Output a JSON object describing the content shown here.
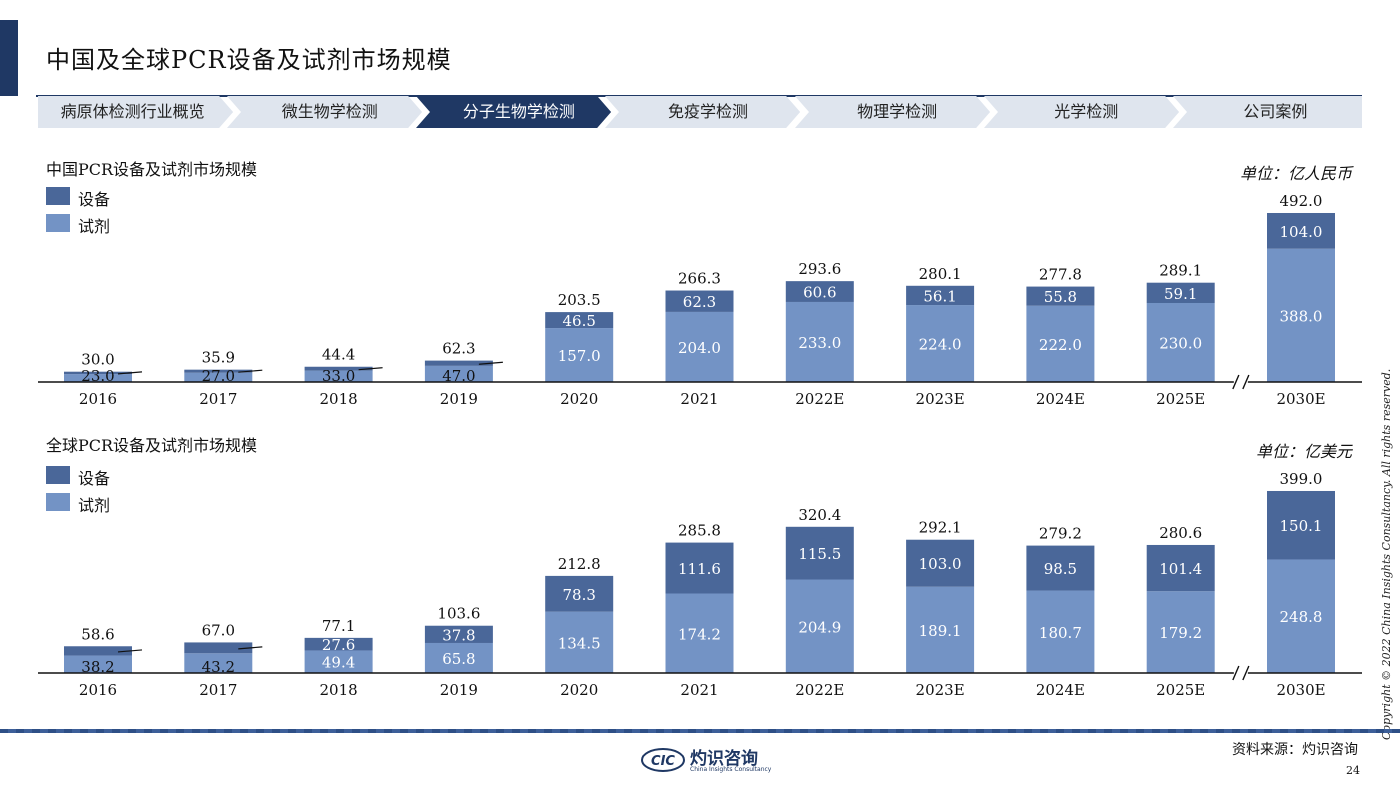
{
  "page": {
    "title": "中国及全球PCR设备及试剂市场规模",
    "copyright": "Copyright © 2022 China Insights Consultancy. All rights reserved.",
    "source": "资料来源：灼识咨询",
    "page_number": "24",
    "logo": {
      "mark": "CIC",
      "name": "灼识咨询",
      "sub": "China Insights Consultancy"
    }
  },
  "nav": {
    "items": [
      {
        "label": "病原体检测行业概览",
        "active": false
      },
      {
        "label": "微生物学检测",
        "active": false
      },
      {
        "label": "分子生物学检测",
        "active": true
      },
      {
        "label": "免疫学检测",
        "active": false
      },
      {
        "label": "物理学检测",
        "active": false
      },
      {
        "label": "光学检测",
        "active": false
      },
      {
        "label": "公司案例",
        "active": false
      }
    ]
  },
  "colors": {
    "equipment": "#4a6799",
    "reagent": "#7393c5",
    "nav_active": "#1f3864",
    "nav_inactive": "#dfe5ee",
    "axis": "#111111"
  },
  "chart_data": [
    {
      "type": "bar",
      "stacked": true,
      "title": "中国PCR设备及试剂市场规模",
      "unit": "单位：亿人民币",
      "axis_break_before": "2030E",
      "legend": [
        "设备",
        "试剂"
      ],
      "categories": [
        "2016",
        "2017",
        "2018",
        "2019",
        "2020",
        "2021",
        "2022E",
        "2023E",
        "2024E",
        "2025E",
        "2030E"
      ],
      "series": [
        {
          "name": "试剂",
          "values": [
            23.0,
            27.0,
            33.0,
            47.0,
            157.0,
            204.0,
            233.0,
            224.0,
            222.0,
            230.0,
            388.0
          ]
        },
        {
          "name": "设备",
          "values": [
            7.0,
            8.9,
            11.4,
            15.3,
            46.5,
            62.3,
            60.6,
            56.1,
            55.8,
            59.1,
            104.0
          ]
        }
      ],
      "equipment_labels": [
        "",
        "",
        "",
        "",
        "46.5",
        "62.3",
        "60.6",
        "56.1",
        "55.8",
        "59.1",
        "104.0"
      ],
      "reagent_labels": [
        "23.0",
        "27.0",
        "33.0",
        "47.0",
        "157.0",
        "204.0",
        "233.0",
        "224.0",
        "222.0",
        "230.0",
        "388.0"
      ],
      "totals": [
        "30.0",
        "35.9",
        "44.4",
        "62.3",
        "203.5",
        "266.3",
        "293.6",
        "280.1",
        "277.8",
        "289.1",
        "492.0"
      ]
    },
    {
      "type": "bar",
      "stacked": true,
      "title": "全球PCR设备及试剂市场规模",
      "unit": "单位：亿美元",
      "axis_break_before": "2030E",
      "legend": [
        "设备",
        "试剂"
      ],
      "categories": [
        "2016",
        "2017",
        "2018",
        "2019",
        "2020",
        "2021",
        "2022E",
        "2023E",
        "2024E",
        "2025E",
        "2030E"
      ],
      "series": [
        {
          "name": "试剂",
          "values": [
            38.2,
            43.2,
            49.4,
            65.8,
            134.5,
            174.2,
            204.9,
            189.1,
            180.7,
            179.2,
            248.8
          ]
        },
        {
          "name": "设备",
          "values": [
            20.4,
            23.8,
            27.6,
            37.8,
            78.3,
            111.6,
            115.5,
            103.0,
            98.5,
            101.4,
            150.1
          ]
        }
      ],
      "equipment_labels": [
        "",
        "",
        "27.6",
        "37.8",
        "78.3",
        "111.6",
        "115.5",
        "103.0",
        "98.5",
        "101.4",
        "150.1"
      ],
      "reagent_labels": [
        "38.2",
        "43.2",
        "49.4",
        "65.8",
        "134.5",
        "174.2",
        "204.9",
        "189.1",
        "180.7",
        "179.2",
        "248.8"
      ],
      "totals": [
        "58.6",
        "67.0",
        "77.1",
        "103.6",
        "212.8",
        "285.8",
        "320.4",
        "292.1",
        "279.2",
        "280.6",
        "399.0"
      ]
    }
  ]
}
